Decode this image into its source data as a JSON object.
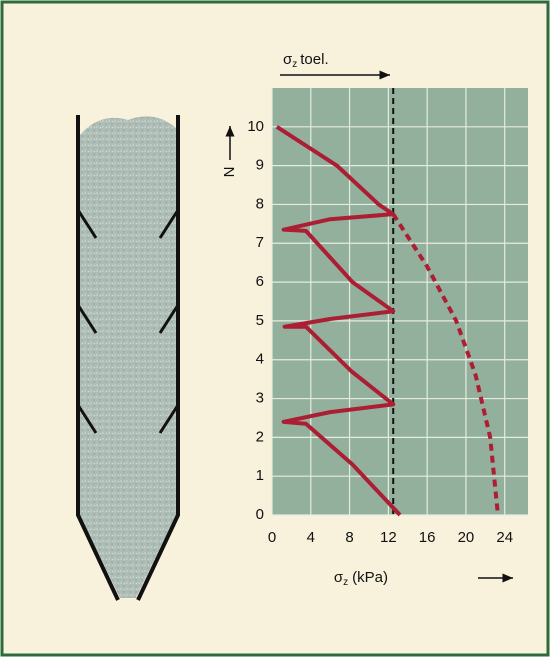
{
  "chart_data": {
    "type": "line",
    "x_label": {
      "symbol": "σ",
      "subscript": "z",
      "text": "(kPa)"
    },
    "y_label": "N",
    "xlim": [
      0,
      26.4
    ],
    "ylim": [
      0,
      11
    ],
    "xticks": [
      0,
      4,
      8,
      12,
      16,
      20,
      24
    ],
    "yticks": [
      0,
      1,
      2,
      3,
      4,
      5,
      6,
      7,
      8,
      9,
      10
    ],
    "grid": true,
    "reference_line": {
      "x": 12.5,
      "symbol": "σ",
      "subscript": "z",
      "text": "toel."
    },
    "series": [
      {
        "color": "#ac1e34",
        "dashed": false,
        "x": [
          0.5,
          6.7,
          11,
          12.5,
          6,
          1.2,
          3.5,
          8.3,
          12.5,
          6,
          1.3,
          3.5,
          8.2,
          12.5,
          6,
          1.2,
          3.5,
          8.3,
          13.2
        ],
        "values": [
          10,
          9,
          8,
          7.75,
          7.62,
          7.35,
          7.32,
          6,
          5.25,
          5.05,
          4.85,
          4.85,
          3.7,
          2.85,
          2.65,
          2.4,
          2.35,
          1.3,
          0
        ]
      },
      {
        "color": "#ac1e34",
        "dashed": true,
        "x": [
          12.5,
          16,
          19,
          21,
          22.5,
          23.3
        ],
        "values": [
          7.75,
          6.4,
          5,
          3.6,
          2,
          0
        ]
      }
    ]
  }
}
